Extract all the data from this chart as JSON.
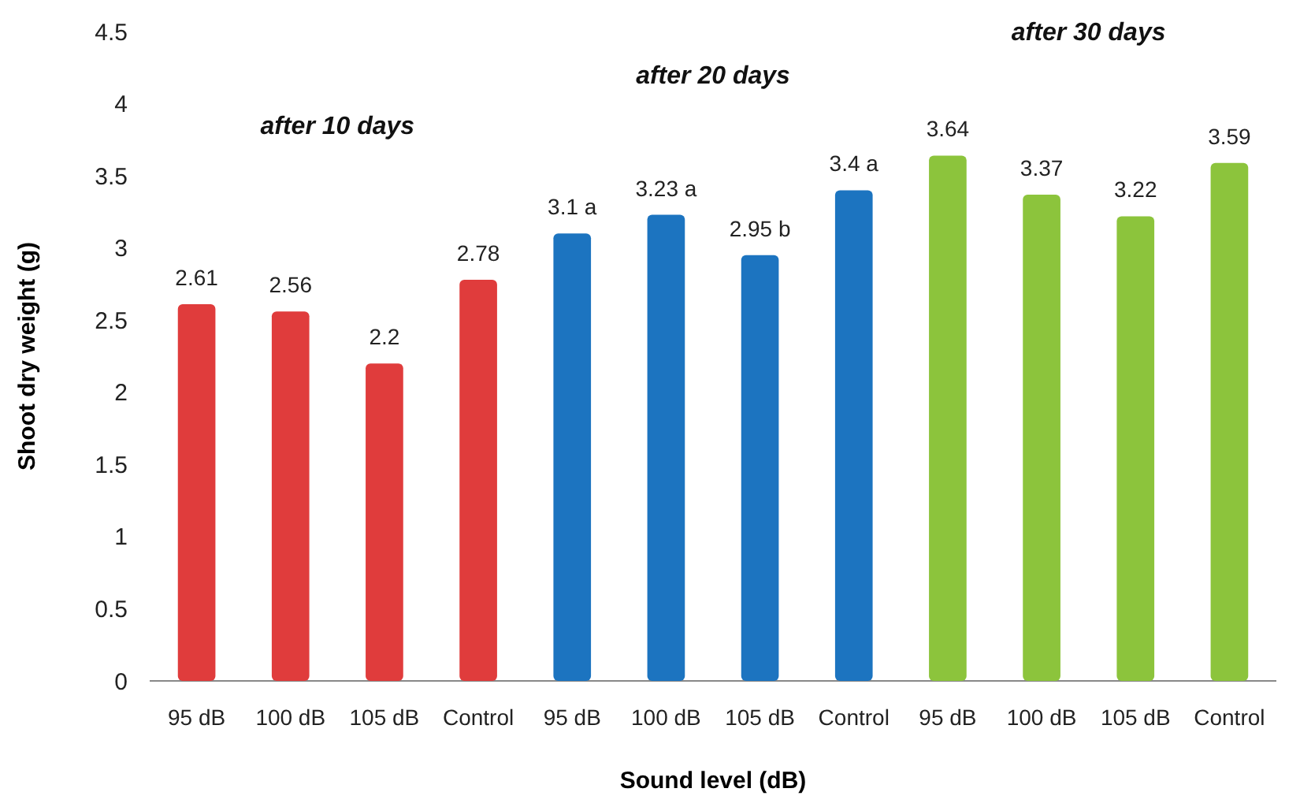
{
  "chart_data": {
    "type": "bar",
    "xlabel": "Sound level (dB)",
    "ylabel": "Shoot dry weight (g)",
    "categories": [
      "95 dB",
      "100 dB",
      "105 dB",
      "Control",
      "95 dB",
      "100 dB",
      "105 dB",
      "Control",
      "95 dB",
      "100 dB",
      "105 dB",
      "Control"
    ],
    "values": [
      2.61,
      2.56,
      2.2,
      2.78,
      3.1,
      3.23,
      2.95,
      3.4,
      3.64,
      3.37,
      3.22,
      3.59
    ],
    "value_labels": [
      "2.61",
      "2.56",
      "2.2",
      "2.78",
      "3.1 a",
      "3.23 a",
      "2.95 b",
      "3.4 a",
      "3.64",
      "3.37",
      "3.22",
      "3.59"
    ],
    "colors": [
      "#e03c3c",
      "#e03c3c",
      "#e03c3c",
      "#e03c3c",
      "#1c74c0",
      "#1c74c0",
      "#1c74c0",
      "#1c74c0",
      "#8cc43c",
      "#8cc43c",
      "#8cc43c",
      "#8cc43c"
    ],
    "annotations": [
      "after 10 days",
      "after 20 days",
      "after 30 days"
    ],
    "ylim": [
      0,
      4.5
    ],
    "yticks": [
      0,
      0.5,
      1,
      1.5,
      2,
      2.5,
      3,
      3.5,
      4,
      4.5
    ],
    "grid": false
  }
}
